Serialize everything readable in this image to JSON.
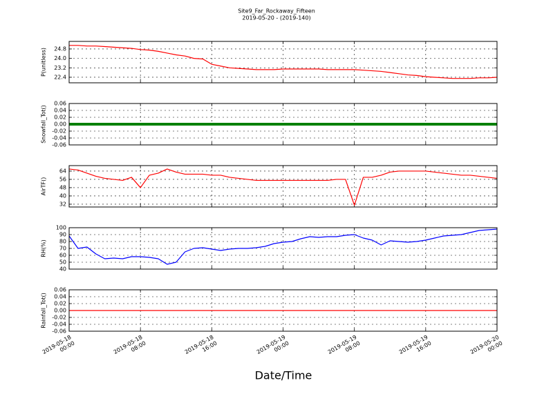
{
  "chart_data": [
    {
      "type": "line",
      "title": "Site9_Far_Rockaway_Fifteen",
      "subtitle": "2019-05-20 - (2019-140)",
      "ylabel": "P(unitless)",
      "color": "#ff0000",
      "grid": true,
      "xlim": [
        "2019-05-18 00:00",
        "2019-05-20 00:00"
      ],
      "xticks": [
        "2019-05-18 00:00",
        "2019-05-18 08:00",
        "2019-05-18 16:00",
        "2019-05-19 00:00",
        "2019-05-19 08:00",
        "2019-05-19 16:00",
        "2019-05-20 00:00"
      ],
      "ylim": [
        21.93,
        25.44
      ],
      "yticks": [
        {
          "value": 22.4,
          "label": "22.4"
        },
        {
          "value": 23.2,
          "label": "23.2"
        },
        {
          "value": 24.0,
          "label": "24.0"
        },
        24.8
      ],
      "x": [
        "2019-05-18 00:00",
        "2019-05-18 01:00",
        "2019-05-18 02:00",
        "2019-05-18 03:00",
        "2019-05-18 04:00",
        "2019-05-18 05:00",
        "2019-05-18 06:00",
        "2019-05-18 07:00",
        "2019-05-18 08:00",
        "2019-05-18 09:00",
        "2019-05-18 10:00",
        "2019-05-18 11:00",
        "2019-05-18 12:00",
        "2019-05-18 13:00",
        "2019-05-18 14:00",
        "2019-05-18 15:00",
        "2019-05-18 16:00",
        "2019-05-18 17:00",
        "2019-05-18 18:00",
        "2019-05-18 19:00",
        "2019-05-18 20:00",
        "2019-05-18 21:00",
        "2019-05-18 22:00",
        "2019-05-18 23:00",
        "2019-05-19 00:00",
        "2019-05-19 01:00",
        "2019-05-19 02:00",
        "2019-05-19 03:00",
        "2019-05-19 04:00",
        "2019-05-19 05:00",
        "2019-05-19 06:00",
        "2019-05-19 07:00",
        "2019-05-19 08:00",
        "2019-05-19 09:00",
        "2019-05-19 10:00",
        "2019-05-19 11:00",
        "2019-05-19 12:00",
        "2019-05-19 13:00",
        "2019-05-19 14:00",
        "2019-05-19 15:00",
        "2019-05-19 16:00",
        "2019-05-19 17:00",
        "2019-05-19 18:00",
        "2019-05-19 19:00",
        "2019-05-19 20:00",
        "2019-05-19 21:00",
        "2019-05-19 22:00",
        "2019-05-19 23:00",
        "2019-05-20 00:00"
      ],
      "values": [
        25.1,
        25.1,
        25.05,
        25.05,
        25.0,
        24.95,
        24.9,
        24.85,
        24.75,
        24.7,
        24.6,
        24.45,
        24.3,
        24.2,
        24.0,
        23.95,
        23.5,
        23.35,
        23.2,
        23.15,
        23.1,
        23.05,
        23.05,
        23.05,
        23.1,
        23.1,
        23.1,
        23.1,
        23.1,
        23.05,
        23.05,
        23.05,
        23.05,
        23.0,
        22.95,
        22.9,
        22.8,
        22.7,
        22.6,
        22.55,
        22.45,
        22.4,
        22.35,
        22.3,
        22.3,
        22.3,
        22.35,
        22.35,
        22.4
      ]
    },
    {
      "type": "line",
      "ylabel": "Snowfall_Tot()",
      "color": "#008000",
      "grid": true,
      "xlim": [
        "2019-05-18 00:00",
        "2019-05-20 00:00"
      ],
      "xticks": [
        "2019-05-18 00:00",
        "2019-05-18 08:00",
        "2019-05-18 16:00",
        "2019-05-19 00:00",
        "2019-05-19 08:00",
        "2019-05-19 16:00",
        "2019-05-20 00:00"
      ],
      "ylim": [
        -0.06,
        0.06
      ],
      "yticks": [
        -0.06,
        -0.04,
        -0.02,
        {
          "value": 0,
          "label": "0.00"
        },
        0.02,
        0.04,
        0.06
      ],
      "x": [
        "2019-05-18 00:00",
        "2019-05-18 01:00",
        "2019-05-18 02:00",
        "2019-05-18 03:00",
        "2019-05-18 04:00",
        "2019-05-18 05:00",
        "2019-05-18 06:00",
        "2019-05-18 07:00",
        "2019-05-18 08:00",
        "2019-05-18 09:00",
        "2019-05-18 10:00",
        "2019-05-18 11:00",
        "2019-05-18 12:00",
        "2019-05-18 13:00",
        "2019-05-18 14:00",
        "2019-05-18 15:00",
        "2019-05-18 16:00",
        "2019-05-18 17:00",
        "2019-05-18 18:00",
        "2019-05-18 19:00",
        "2019-05-18 20:00",
        "2019-05-18 21:00",
        "2019-05-18 22:00",
        "2019-05-18 23:00",
        "2019-05-19 00:00",
        "2019-05-19 01:00",
        "2019-05-19 02:00",
        "2019-05-19 03:00",
        "2019-05-19 04:00",
        "2019-05-19 05:00",
        "2019-05-19 06:00",
        "2019-05-19 07:00",
        "2019-05-19 08:00",
        "2019-05-19 09:00",
        "2019-05-19 10:00",
        "2019-05-19 11:00",
        "2019-05-19 12:00",
        "2019-05-19 13:00",
        "2019-05-19 14:00",
        "2019-05-19 15:00",
        "2019-05-19 16:00",
        "2019-05-19 17:00",
        "2019-05-19 18:00",
        "2019-05-19 19:00",
        "2019-05-19 20:00",
        "2019-05-19 21:00",
        "2019-05-19 22:00",
        "2019-05-19 23:00",
        "2019-05-20 00:00"
      ],
      "values": [
        0,
        0,
        0,
        0,
        0,
        0,
        0,
        0,
        0,
        0,
        0,
        0,
        0,
        0,
        0,
        0,
        0,
        0,
        0,
        0,
        0,
        0,
        0,
        0,
        0,
        0,
        0,
        0,
        0,
        0,
        0,
        0,
        0,
        0,
        0,
        0,
        0,
        0,
        0,
        0,
        0,
        0,
        0,
        0,
        0,
        0,
        0,
        0,
        0
      ]
    },
    {
      "type": "line",
      "ylabel": "AirTF()",
      "color": "#ff0000",
      "grid": true,
      "xlim": [
        "2019-05-18 00:00",
        "2019-05-20 00:00"
      ],
      "xticks": [
        "2019-05-18 00:00",
        "2019-05-18 08:00",
        "2019-05-18 16:00",
        "2019-05-19 00:00",
        "2019-05-19 08:00",
        "2019-05-19 16:00",
        "2019-05-20 00:00"
      ],
      "ylim": [
        29.3,
        69.3
      ],
      "yticks": [
        32,
        40,
        48,
        56,
        64
      ],
      "x": [
        "2019-05-18 00:00",
        "2019-05-18 01:00",
        "2019-05-18 02:00",
        "2019-05-18 03:00",
        "2019-05-18 04:00",
        "2019-05-18 05:00",
        "2019-05-18 06:00",
        "2019-05-18 07:00",
        "2019-05-18 08:00",
        "2019-05-18 09:00",
        "2019-05-18 10:00",
        "2019-05-18 11:00",
        "2019-05-18 12:00",
        "2019-05-18 13:00",
        "2019-05-18 14:00",
        "2019-05-18 15:00",
        "2019-05-18 16:00",
        "2019-05-18 17:00",
        "2019-05-18 18:00",
        "2019-05-18 19:00",
        "2019-05-18 20:00",
        "2019-05-18 21:00",
        "2019-05-18 22:00",
        "2019-05-18 23:00",
        "2019-05-19 00:00",
        "2019-05-19 01:00",
        "2019-05-19 02:00",
        "2019-05-19 03:00",
        "2019-05-19 04:00",
        "2019-05-19 05:00",
        "2019-05-19 06:00",
        "2019-05-19 07:00",
        "2019-05-19 08:00",
        "2019-05-19 09:00",
        "2019-05-19 10:00",
        "2019-05-19 11:00",
        "2019-05-19 12:00",
        "2019-05-19 13:00",
        "2019-05-19 14:00",
        "2019-05-19 15:00",
        "2019-05-19 16:00",
        "2019-05-19 17:00",
        "2019-05-19 18:00",
        "2019-05-19 19:00",
        "2019-05-19 20:00",
        "2019-05-19 21:00",
        "2019-05-19 22:00",
        "2019-05-19 23:00",
        "2019-05-20 00:00"
      ],
      "values": [
        66,
        65,
        62,
        59,
        57,
        56,
        55,
        58,
        48,
        60,
        62,
        66,
        63,
        61,
        61,
        61,
        60,
        60,
        58,
        57,
        56,
        55,
        55,
        55,
        55,
        55,
        55,
        55,
        55,
        55,
        56,
        56,
        31,
        58,
        58,
        60,
        63,
        64,
        64,
        64,
        64,
        63,
        62,
        61,
        60,
        60,
        59,
        58,
        57
      ]
    },
    {
      "type": "line",
      "ylabel": "RH(%)",
      "color": "#0000ff",
      "grid": true,
      "xlim": [
        "2019-05-18 00:00",
        "2019-05-20 00:00"
      ],
      "xticks": [
        "2019-05-18 00:00",
        "2019-05-18 08:00",
        "2019-05-18 16:00",
        "2019-05-19 00:00",
        "2019-05-19 08:00",
        "2019-05-19 16:00",
        "2019-05-20 00:00"
      ],
      "ylim": [
        40,
        100
      ],
      "yticks": [
        40,
        50,
        60,
        70,
        80,
        90,
        100
      ],
      "x": [
        "2019-05-18 00:00",
        "2019-05-18 01:00",
        "2019-05-18 02:00",
        "2019-05-18 03:00",
        "2019-05-18 04:00",
        "2019-05-18 05:00",
        "2019-05-18 06:00",
        "2019-05-18 07:00",
        "2019-05-18 08:00",
        "2019-05-18 09:00",
        "2019-05-18 10:00",
        "2019-05-18 11:00",
        "2019-05-18 12:00",
        "2019-05-18 13:00",
        "2019-05-18 14:00",
        "2019-05-18 15:00",
        "2019-05-18 16:00",
        "2019-05-18 17:00",
        "2019-05-18 18:00",
        "2019-05-18 19:00",
        "2019-05-18 20:00",
        "2019-05-18 21:00",
        "2019-05-18 22:00",
        "2019-05-18 23:00",
        "2019-05-19 00:00",
        "2019-05-19 01:00",
        "2019-05-19 02:00",
        "2019-05-19 03:00",
        "2019-05-19 04:00",
        "2019-05-19 05:00",
        "2019-05-19 06:00",
        "2019-05-19 07:00",
        "2019-05-19 08:00",
        "2019-05-19 09:00",
        "2019-05-19 10:00",
        "2019-05-19 11:00",
        "2019-05-19 12:00",
        "2019-05-19 13:00",
        "2019-05-19 14:00",
        "2019-05-19 15:00",
        "2019-05-19 16:00",
        "2019-05-19 17:00",
        "2019-05-19 18:00",
        "2019-05-19 19:00",
        "2019-05-19 20:00",
        "2019-05-19 21:00",
        "2019-05-19 22:00",
        "2019-05-19 23:00",
        "2019-05-20 00:00"
      ],
      "values": [
        88,
        70,
        72,
        62,
        55,
        56,
        55,
        58,
        58,
        57,
        55,
        47,
        50,
        65,
        70,
        71,
        69,
        67,
        69,
        70,
        70,
        71,
        73,
        77,
        79,
        80,
        84,
        87,
        86,
        87,
        87,
        89,
        90,
        85,
        82,
        75,
        81,
        80,
        79,
        80,
        82,
        85,
        88,
        89,
        90,
        93,
        96,
        97,
        98
      ]
    },
    {
      "type": "line",
      "ylabel": "Rainfall_Tot()",
      "xlabel": "Date/Time",
      "color": "#ff0000",
      "grid": true,
      "xlim": [
        "2019-05-18 00:00",
        "2019-05-20 00:00"
      ],
      "xticks": [
        "2019-05-18 00:00",
        "2019-05-18 08:00",
        "2019-05-18 16:00",
        "2019-05-19 00:00",
        "2019-05-19 08:00",
        "2019-05-19 16:00",
        "2019-05-20 00:00"
      ],
      "ylim": [
        -0.06,
        0.06
      ],
      "yticks": [
        -0.06,
        -0.04,
        -0.02,
        {
          "value": 0,
          "label": "0.00"
        },
        0.02,
        0.04,
        0.06
      ],
      "x": [
        "2019-05-18 00:00",
        "2019-05-18 01:00",
        "2019-05-18 02:00",
        "2019-05-18 03:00",
        "2019-05-18 04:00",
        "2019-05-18 05:00",
        "2019-05-18 06:00",
        "2019-05-18 07:00",
        "2019-05-18 08:00",
        "2019-05-18 09:00",
        "2019-05-18 10:00",
        "2019-05-18 11:00",
        "2019-05-18 12:00",
        "2019-05-18 13:00",
        "2019-05-18 14:00",
        "2019-05-18 15:00",
        "2019-05-18 16:00",
        "2019-05-18 17:00",
        "2019-05-18 18:00",
        "2019-05-18 19:00",
        "2019-05-18 20:00",
        "2019-05-18 21:00",
        "2019-05-18 22:00",
        "2019-05-18 23:00",
        "2019-05-19 00:00",
        "2019-05-19 01:00",
        "2019-05-19 02:00",
        "2019-05-19 03:00",
        "2019-05-19 04:00",
        "2019-05-19 05:00",
        "2019-05-19 06:00",
        "2019-05-19 07:00",
        "2019-05-19 08:00",
        "2019-05-19 09:00",
        "2019-05-19 10:00",
        "2019-05-19 11:00",
        "2019-05-19 12:00",
        "2019-05-19 13:00",
        "2019-05-19 14:00",
        "2019-05-19 15:00",
        "2019-05-19 16:00",
        "2019-05-19 17:00",
        "2019-05-19 18:00",
        "2019-05-19 19:00",
        "2019-05-19 20:00",
        "2019-05-19 21:00",
        "2019-05-19 22:00",
        "2019-05-19 23:00",
        "2019-05-20 00:00"
      ],
      "values": [
        0,
        0,
        0,
        0,
        0,
        0,
        0,
        0,
        0,
        0,
        0,
        0,
        0,
        0,
        0,
        0,
        0,
        0,
        0,
        0,
        0,
        0,
        0,
        0,
        0,
        0,
        0,
        0,
        0,
        0,
        0,
        0,
        0,
        0,
        0,
        0,
        0,
        0,
        0,
        0,
        0,
        0,
        0,
        0,
        0,
        0,
        0,
        0,
        0
      ]
    }
  ]
}
